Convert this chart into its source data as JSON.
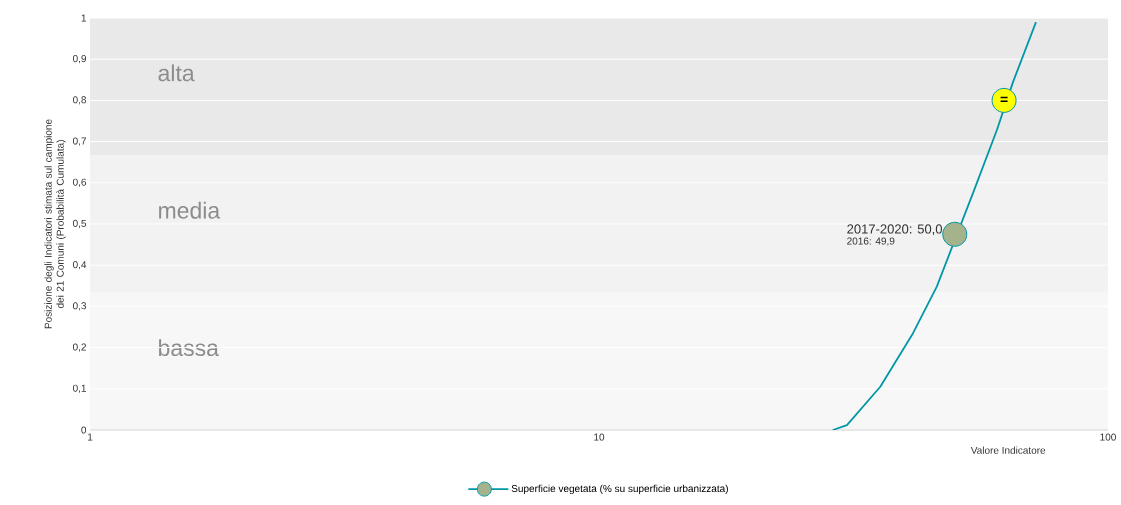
{
  "chart_data": {
    "type": "line",
    "ylabel": "Posizione degli Indicatori stimata sul campione dei 21 Comuni (Probabilità Cumulata)",
    "xlabel": "Valore Indicatore",
    "log": "x",
    "xlim": [
      1,
      100
    ],
    "xticks": [
      1,
      10,
      100
    ],
    "ylim": [
      0,
      1
    ],
    "yticks": [
      0,
      {
        "value": 0.1,
        "label": "0,1"
      },
      {
        "value": 0.2,
        "label": "0,2"
      },
      {
        "value": 0.3,
        "label": "0,3"
      },
      {
        "value": 0.4,
        "label": "0,4"
      },
      {
        "value": 0.5,
        "label": "0,5"
      },
      {
        "value": 0.6,
        "label": "0,6"
      },
      {
        "value": 0.7,
        "label": "0,7"
      },
      {
        "value": 0.8,
        "label": "0,8"
      },
      {
        "value": 0.9,
        "label": "0,9"
      },
      1
    ],
    "grid": "y",
    "legend": "bottom",
    "series": [
      {
        "name": "Superficie vegetata (% su superficie urbanizzata)",
        "color": "#0097a7",
        "x": [
          28.8,
          30.7,
          35.7,
          41.4,
          46.1,
          54.3,
          60.5,
          65.1,
          72.2
        ],
        "values": [
          0,
          0.012,
          0.105,
          0.235,
          0.348,
          0.575,
          0.728,
          0.845,
          0.99
        ]
      },
      {
        "type": "scatter",
        "color": "#a5b38c",
        "x": [
          50.0
        ],
        "values": [
          0.475
        ]
      },
      {
        "type": "scatter",
        "color": "#ffff00",
        "x": [
          62.5
        ],
        "values": [
          0.8
        ]
      }
    ],
    "bands": [
      {
        "axis": "y",
        "from": 0,
        "to": 0.333,
        "label": "bassa",
        "color": "#f7f7f7"
      },
      {
        "axis": "y",
        "from": 0.333,
        "to": 0.667,
        "label": "media",
        "color": "#f2f2f2"
      },
      {
        "axis": "y",
        "from": 0.667,
        "to": 1,
        "label": "alta",
        "color": "#e9e9e9"
      }
    ],
    "annotations": [
      {
        "text": "2017-2020: 50,0",
        "x": 50.0,
        "y": 0.475
      },
      "2016: 49,9",
      {
        "text": "=",
        "x": 62.5,
        "y": 0.8
      }
    ]
  }
}
